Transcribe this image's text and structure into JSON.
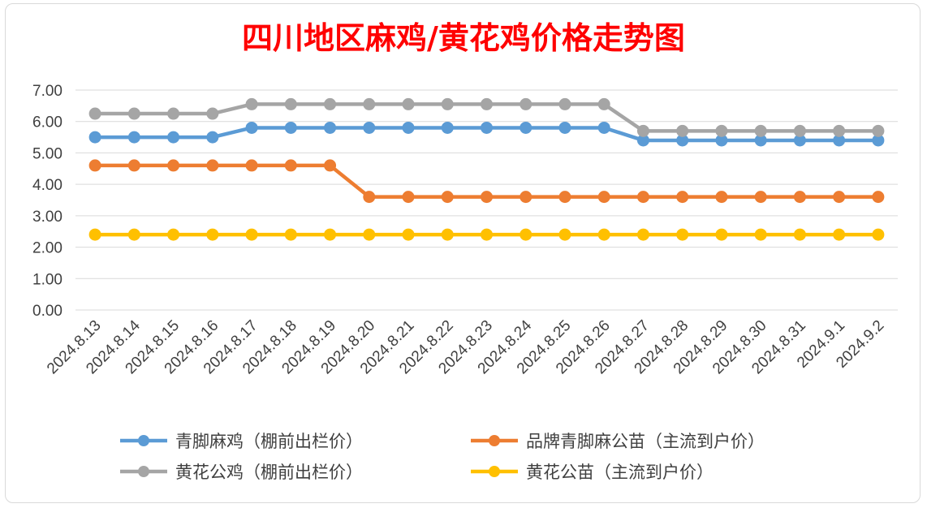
{
  "chart_data": {
    "type": "line",
    "title": "四川地区麻鸡/黄花鸡价格走势图",
    "xlabel": "",
    "ylabel": "",
    "ylim": [
      0,
      7
    ],
    "ytick_labels": [
      "0.00",
      "1.00",
      "2.00",
      "3.00",
      "4.00",
      "5.00",
      "6.00",
      "7.00"
    ],
    "categories": [
      "2024.8.13",
      "2024.8.14",
      "2024.8.15",
      "2024.8.16",
      "2024.8.17",
      "2024.8.18",
      "2024.8.19",
      "2024.8.20",
      "2024.8.21",
      "2024.8.22",
      "2024.8.23",
      "2024.8.24",
      "2024.8.25",
      "2024.8.26",
      "2024.8.27",
      "2024.8.28",
      "2024.8.29",
      "2024.8.30",
      "2024.8.31",
      "2024.9.1",
      "2024.9.2"
    ],
    "grid": true,
    "legend_position": "bottom",
    "series": [
      {
        "name": "青脚麻鸡（棚前出栏价）",
        "color": "#5b9bd5",
        "values": [
          5.5,
          5.5,
          5.5,
          5.5,
          5.8,
          5.8,
          5.8,
          5.8,
          5.8,
          5.8,
          5.8,
          5.8,
          5.8,
          5.8,
          5.4,
          5.4,
          5.4,
          5.4,
          5.4,
          5.4,
          5.4
        ]
      },
      {
        "name": "品牌青脚麻公苗（主流到户价）",
        "color": "#ed7d31",
        "values": [
          4.6,
          4.6,
          4.6,
          4.6,
          4.6,
          4.6,
          4.6,
          3.6,
          3.6,
          3.6,
          3.6,
          3.6,
          3.6,
          3.6,
          3.6,
          3.6,
          3.6,
          3.6,
          3.6,
          3.6,
          3.6
        ]
      },
      {
        "name": "黄花公鸡（棚前出栏价）",
        "color": "#a5a5a5",
        "values": [
          6.25,
          6.25,
          6.25,
          6.25,
          6.55,
          6.55,
          6.55,
          6.55,
          6.55,
          6.55,
          6.55,
          6.55,
          6.55,
          6.55,
          5.7,
          5.7,
          5.7,
          5.7,
          5.7,
          5.7,
          5.7
        ]
      },
      {
        "name": "黄花公苗（主流到户价）",
        "color": "#ffc000",
        "values": [
          2.4,
          2.4,
          2.4,
          2.4,
          2.4,
          2.4,
          2.4,
          2.4,
          2.4,
          2.4,
          2.4,
          2.4,
          2.4,
          2.4,
          2.4,
          2.4,
          2.4,
          2.4,
          2.4,
          2.4,
          2.4
        ]
      }
    ]
  }
}
